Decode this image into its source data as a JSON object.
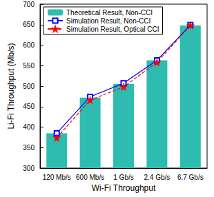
{
  "chart_data": {
    "type": "bar",
    "x_label": "Wi-Fi Throughput",
    "y_label": "Li-Fi Throughput (Mb/s)",
    "categories": [
      "120 Mb/s",
      "600 Mb/s",
      "1 Gb/s",
      "2.4 Gb/s",
      "6.7 Gb/s"
    ],
    "series": [
      {
        "name": "Theoretical Result, Non-CCI",
        "type": "bar",
        "color": "#2ebcb0",
        "values": [
          385,
          472,
          505,
          563,
          648
        ]
      },
      {
        "name": "Simulation Result, Non-CCI",
        "type": "line",
        "color": "#0000ff",
        "marker": "square",
        "line_style": "solid",
        "values": [
          385,
          474,
          507,
          563,
          649
        ]
      },
      {
        "name": "Simulation Result, Optical CCI",
        "type": "line",
        "color": "#ff0000",
        "marker": "star",
        "line_style": "dashed",
        "values": [
          374,
          466,
          498,
          558,
          648
        ]
      }
    ],
    "ylim": [
      300,
      700
    ],
    "yticks": [
      300,
      350,
      400,
      450,
      500,
      550,
      600,
      650,
      700
    ],
    "grid": false,
    "legend": "upper left"
  }
}
